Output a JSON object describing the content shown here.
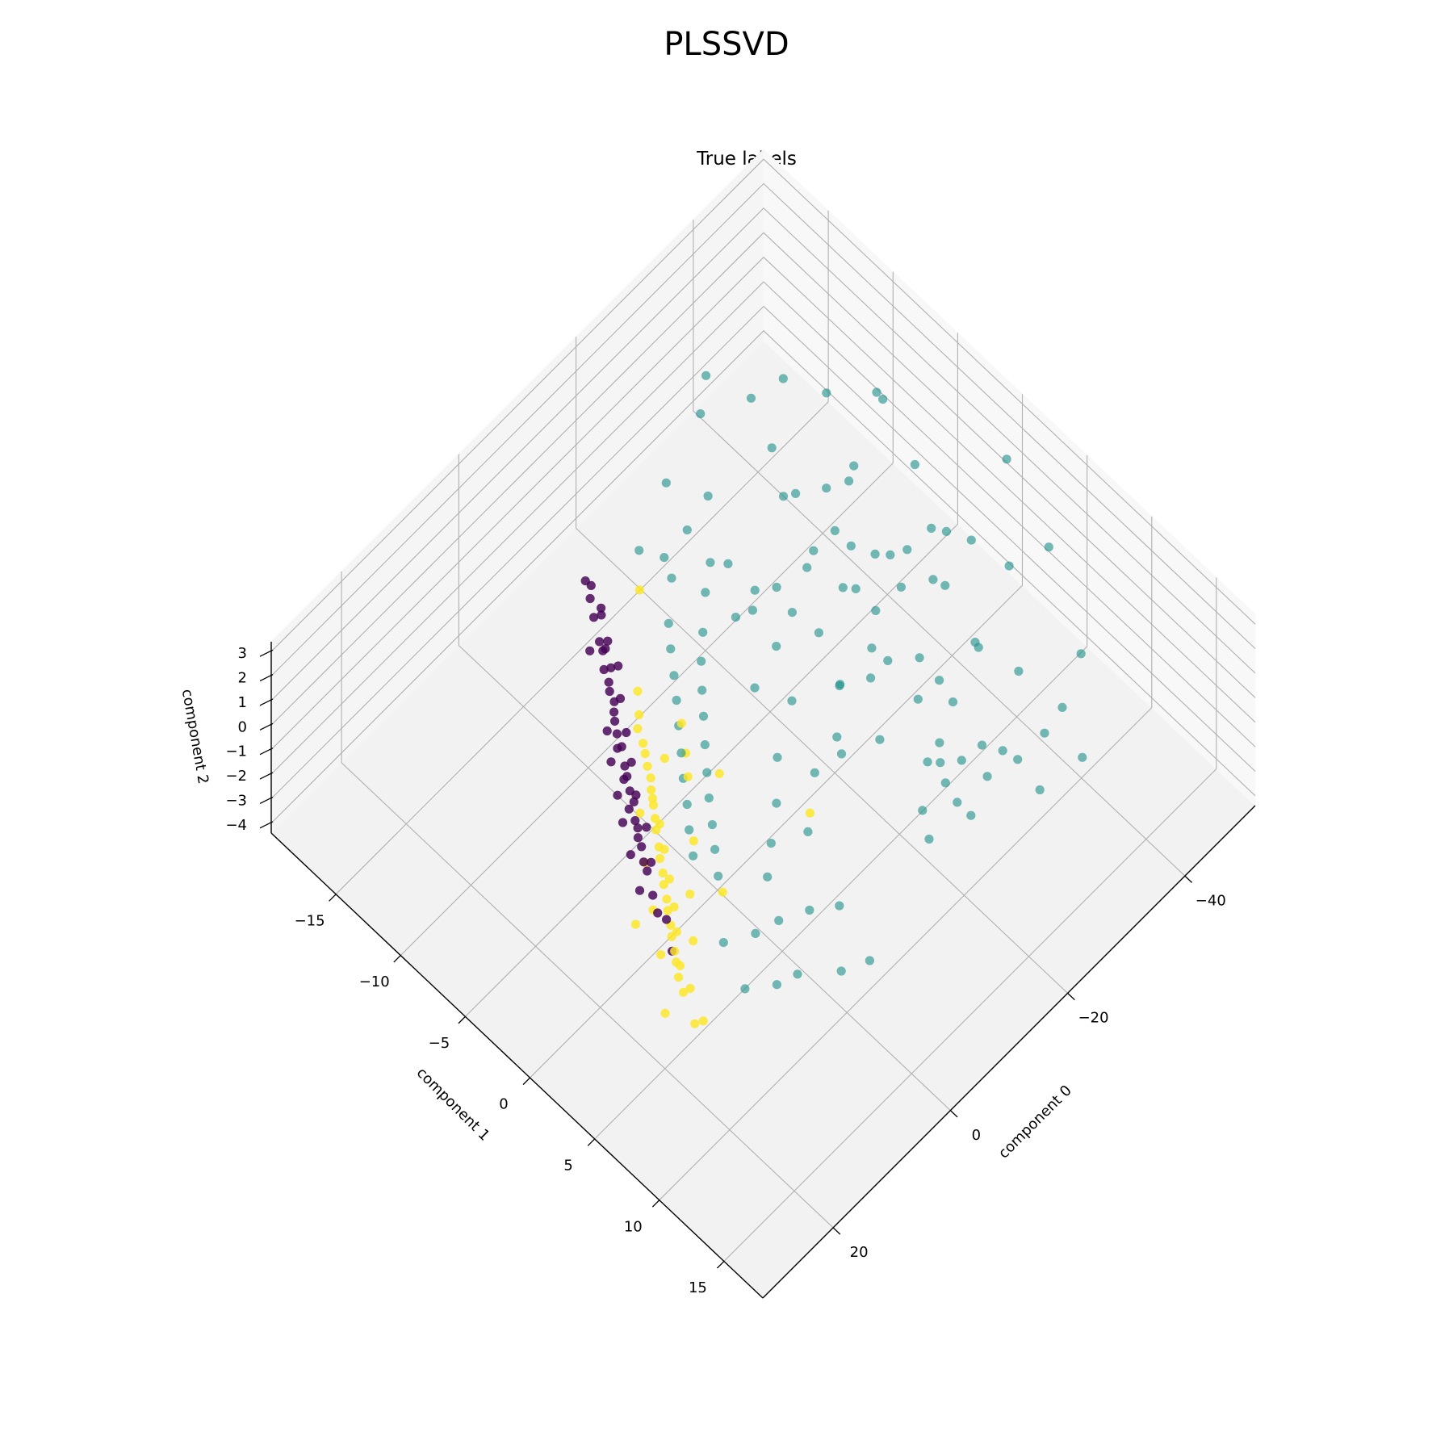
{
  "figure": {
    "suptitle": "PLSSVD",
    "axes_title": "True labels"
  },
  "chart_data": {
    "type": "scatter",
    "projection": "3d",
    "title": "PLSSVD",
    "subtitle": "True labels",
    "xlabel": "component 0",
    "ylabel": "component 1",
    "zlabel": "component 2",
    "xlim": [
      -52,
      32
    ],
    "ylim": [
      -20,
      18
    ],
    "zlim": [
      -4.4,
      3.4
    ],
    "x_ticks": [
      -40,
      -20,
      0,
      20
    ],
    "x_tick_labels": [
      "−40",
      "−20",
      "0",
      "20"
    ],
    "y_ticks": [
      -15,
      -10,
      -5,
      0,
      5,
      10,
      15
    ],
    "y_tick_labels": [
      "−15",
      "−10",
      "−5",
      "0",
      "5",
      "10",
      "15"
    ],
    "z_ticks": [
      -4,
      -3,
      -2,
      -1,
      0,
      1,
      2,
      3
    ],
    "z_tick_labels": [
      "−4",
      "−3",
      "−2",
      "−1",
      "0",
      "1",
      "2",
      "3"
    ],
    "grid": true,
    "legend": "none",
    "colormap": "viridis",
    "class_colors": [
      "#440154",
      "#21918c",
      "#fde725"
    ],
    "series": [
      {
        "class": 0,
        "color": "#440154",
        "points": [
          [
            -2.1,
            -10.8,
            1.6
          ],
          [
            -1.4,
            -10.2,
            1.3
          ],
          [
            -0.6,
            -9.4,
            0.9
          ],
          [
            0.4,
            -8.6,
            0.4
          ],
          [
            1.2,
            -7.8,
            0.1
          ],
          [
            2.3,
            -6.9,
            -0.4
          ],
          [
            3.1,
            -6.0,
            -0.8
          ],
          [
            4.2,
            -5.1,
            -1.3
          ],
          [
            5.0,
            -4.2,
            -1.7
          ],
          [
            6.1,
            -3.4,
            -2.1
          ],
          [
            -0.9,
            -8.9,
            1.1
          ],
          [
            0.1,
            -8.2,
            0.6
          ],
          [
            1.5,
            -7.3,
            0.0
          ],
          [
            2.8,
            -6.5,
            -0.6
          ],
          [
            3.9,
            -5.4,
            -1.1
          ],
          [
            4.8,
            -4.6,
            -1.5
          ],
          [
            5.9,
            -3.7,
            -2.0
          ],
          [
            6.8,
            -2.8,
            -2.4
          ],
          [
            7.6,
            -2.0,
            -2.8
          ],
          [
            8.4,
            -1.2,
            -3.2
          ],
          [
            -1.8,
            -9.8,
            1.5
          ],
          [
            -0.3,
            -9.0,
            0.8
          ],
          [
            0.9,
            -8.0,
            0.3
          ],
          [
            2.0,
            -7.1,
            -0.2
          ],
          [
            3.4,
            -6.2,
            -0.9
          ],
          [
            4.5,
            -5.2,
            -1.4
          ],
          [
            5.6,
            -4.3,
            -1.9
          ],
          [
            6.5,
            -3.2,
            -2.3
          ],
          [
            7.3,
            -2.4,
            -2.7
          ],
          [
            8.9,
            -0.6,
            -3.5
          ],
          [
            -2.4,
            -11.3,
            2.0
          ],
          [
            -1.6,
            -10.5,
            2.4
          ],
          [
            0.2,
            -7.6,
            1.0
          ],
          [
            1.8,
            -6.7,
            0.5
          ],
          [
            3.0,
            -5.7,
            -0.1
          ],
          [
            4.1,
            -4.8,
            -0.6
          ],
          [
            5.3,
            -3.9,
            -1.2
          ],
          [
            6.4,
            -2.6,
            -1.6
          ],
          [
            7.8,
            -1.6,
            -2.2
          ],
          [
            9.6,
            0.4,
            -3.1
          ],
          [
            -1.1,
            -9.5,
            2.1
          ],
          [
            0.6,
            -8.4,
            1.4
          ],
          [
            2.5,
            -7.4,
            -1.0
          ],
          [
            3.6,
            -6.6,
            -1.6
          ],
          [
            4.7,
            -5.6,
            -2.2
          ],
          [
            5.8,
            -4.7,
            -2.6
          ],
          [
            7.1,
            -3.5,
            -3.0
          ],
          [
            8.2,
            -2.3,
            -3.6
          ],
          [
            10.4,
            1.2,
            -3.8
          ],
          [
            -0.5,
            -10.1,
            0.2
          ]
        ]
      },
      {
        "class": 1,
        "color": "#21918c",
        "points": [
          [
            -28.0,
            -2.0,
            0.2
          ],
          [
            -30.5,
            -3.5,
            0.6
          ],
          [
            -25.2,
            0.5,
            -0.3
          ],
          [
            -32.1,
            -1.2,
            1.0
          ],
          [
            -27.4,
            -5.0,
            0.4
          ],
          [
            -22.8,
            -2.5,
            -0.6
          ],
          [
            -35.0,
            0.8,
            0.3
          ],
          [
            -29.6,
            2.2,
            -0.9
          ],
          [
            -24.3,
            -4.1,
            0.9
          ],
          [
            -31.8,
            -6.0,
            1.4
          ],
          [
            -26.7,
            3.4,
            -1.3
          ],
          [
            -20.9,
            0.0,
            -1.0
          ],
          [
            -33.5,
            -3.0,
            -0.2
          ],
          [
            -28.9,
            1.1,
            1.6
          ],
          [
            -23.6,
            -1.0,
            1.8
          ],
          [
            -37.2,
            -2.2,
            -0.5
          ],
          [
            -30.0,
            4.6,
            -1.6
          ],
          [
            -25.8,
            -6.6,
            2.2
          ],
          [
            -21.5,
            2.8,
            -2.0
          ],
          [
            -34.4,
            2.0,
            0.8
          ],
          [
            -27.0,
            -0.4,
            -2.4
          ],
          [
            -22.0,
            -5.4,
            0.0
          ],
          [
            -29.2,
            -7.2,
            1.2
          ],
          [
            -38.6,
            0.2,
            1.1
          ],
          [
            -24.8,
            5.0,
            -2.6
          ],
          [
            -31.2,
            3.0,
            -1.8
          ],
          [
            -19.8,
            -3.2,
            0.6
          ],
          [
            -26.2,
            -2.8,
            2.6
          ],
          [
            -33.0,
            -4.8,
            2.0
          ],
          [
            -36.0,
            3.6,
            -1.1
          ],
          [
            -28.4,
            6.0,
            -2.9
          ],
          [
            -23.0,
            1.8,
            2.4
          ],
          [
            -30.8,
            -0.8,
            -2.8
          ],
          [
            -40.0,
            -1.6,
            0.0
          ],
          [
            -21.0,
            -6.8,
            -1.4
          ],
          [
            -27.8,
            -8.4,
            2.8
          ],
          [
            -35.6,
            -5.6,
            1.6
          ],
          [
            -25.0,
            7.2,
            -3.2
          ],
          [
            -32.6,
            5.4,
            0.4
          ],
          [
            -18.6,
            0.8,
            -2.2
          ],
          [
            -6.0,
            -6.5,
            1.8
          ],
          [
            -4.8,
            -5.8,
            1.4
          ],
          [
            -3.6,
            -5.0,
            1.0
          ],
          [
            -2.5,
            -4.3,
            0.6
          ],
          [
            -1.3,
            -3.6,
            0.2
          ],
          [
            -0.2,
            -2.9,
            -0.3
          ],
          [
            1.0,
            -2.2,
            -0.7
          ],
          [
            2.1,
            -1.4,
            -1.1
          ],
          [
            3.3,
            -0.7,
            -1.5
          ],
          [
            4.4,
            0.1,
            -1.9
          ],
          [
            -7.2,
            -4.4,
            2.2
          ],
          [
            -5.6,
            -3.8,
            1.7
          ],
          [
            -4.2,
            -3.1,
            1.2
          ],
          [
            -2.9,
            -2.4,
            0.8
          ],
          [
            -1.6,
            -1.7,
            0.3
          ],
          [
            -0.4,
            -1.0,
            -0.2
          ],
          [
            0.8,
            -0.3,
            -0.6
          ],
          [
            2.0,
            0.5,
            -1.0
          ],
          [
            3.1,
            1.2,
            -1.4
          ],
          [
            4.3,
            2.0,
            -1.8
          ],
          [
            -8.5,
            -7.4,
            2.6
          ],
          [
            -9.4,
            -5.2,
            2.9
          ],
          [
            -10.6,
            -3.4,
            2.5
          ],
          [
            -12.0,
            -6.0,
            3.1
          ],
          [
            -13.8,
            -8.6,
            2.7
          ],
          [
            -15.2,
            -4.0,
            2.2
          ],
          [
            -11.2,
            -9.2,
            1.9
          ],
          [
            -16.8,
            -6.8,
            1.5
          ],
          [
            -7.8,
            -9.6,
            2.8
          ],
          [
            -9.0,
            -1.2,
            1.1
          ],
          [
            -11.8,
            0.4,
            0.7
          ],
          [
            -14.0,
            -1.8,
            1.3
          ],
          [
            -17.5,
            1.5,
            0.5
          ],
          [
            -8.0,
            1.0,
            -0.4
          ],
          [
            -5.2,
            2.2,
            -1.0
          ],
          [
            -10.4,
            2.8,
            -0.7
          ],
          [
            -13.2,
            3.6,
            -0.2
          ],
          [
            -6.6,
            4.0,
            -1.6
          ],
          [
            -3.4,
            2.6,
            -2.0
          ],
          [
            -1.0,
            3.4,
            -2.4
          ],
          [
            -44.0,
            2.6,
            -0.4
          ],
          [
            -42.5,
            -4.0,
            0.8
          ],
          [
            -45.5,
            -1.0,
            -1.5
          ],
          [
            -39.0,
            5.6,
            -2.0
          ],
          [
            -41.6,
            7.8,
            -3.0
          ],
          [
            -36.8,
            8.6,
            -2.5
          ],
          [
            -46.8,
            4.4,
            0.6
          ],
          [
            -43.2,
            -6.8,
            1.9
          ],
          [
            -33.8,
            9.6,
            -3.6
          ],
          [
            -48.0,
            0.6,
            2.0
          ],
          [
            -18.0,
            9.0,
            1.8
          ],
          [
            -14.6,
            10.6,
            2.6
          ],
          [
            -12.4,
            12.0,
            3.0
          ],
          [
            -9.8,
            11.4,
            2.2
          ],
          [
            -20.4,
            12.8,
            2.8
          ],
          [
            -16.0,
            13.6,
            3.2
          ],
          [
            -22.6,
            10.2,
            1.2
          ],
          [
            -7.4,
            13.0,
            2.4
          ],
          [
            -25.6,
            11.6,
            0.6
          ],
          [
            -11.0,
            14.6,
            3.3
          ],
          [
            -2.0,
            6.2,
            -2.6
          ],
          [
            0.6,
            5.0,
            -3.0
          ],
          [
            2.8,
            4.2,
            -3.4
          ],
          [
            -4.0,
            7.6,
            -2.2
          ],
          [
            5.6,
            3.0,
            -3.7
          ],
          [
            1.8,
            7.0,
            -3.9
          ],
          [
            -0.8,
            9.2,
            -3.3
          ],
          [
            4.0,
            6.4,
            -4.1
          ],
          [
            -3.0,
            10.4,
            -2.8
          ],
          [
            6.8,
            5.2,
            -4.2
          ],
          [
            -38.0,
            -8.8,
            2.4
          ],
          [
            -30.0,
            -11.0,
            3.0
          ],
          [
            -24.0,
            -12.2,
            3.2
          ],
          [
            -20.0,
            -9.8,
            2.0
          ],
          [
            -34.6,
            -10.6,
            2.9
          ],
          [
            -16.4,
            -11.4,
            2.6
          ],
          [
            -44.8,
            -8.0,
            1.2
          ],
          [
            -27.6,
            -13.4,
            3.3
          ],
          [
            -40.6,
            9.8,
            -3.8
          ],
          [
            -47.0,
            6.8,
            -2.6
          ]
        ]
      },
      {
        "class": 2,
        "color": "#fde725",
        "points": [
          [
            3.0,
            -3.8,
            -1.0
          ],
          [
            4.1,
            -3.1,
            -1.5
          ],
          [
            5.2,
            -2.4,
            -1.9
          ],
          [
            6.3,
            -1.6,
            -2.4
          ],
          [
            7.4,
            -0.8,
            -2.8
          ],
          [
            8.5,
            0.0,
            -3.2
          ],
          [
            9.6,
            0.8,
            -3.6
          ],
          [
            10.6,
            1.6,
            -4.0
          ],
          [
            2.2,
            -4.6,
            -0.6
          ],
          [
            3.6,
            -3.5,
            -1.2
          ],
          [
            4.7,
            -2.7,
            -1.7
          ],
          [
            5.8,
            -1.9,
            -2.2
          ],
          [
            6.9,
            -1.1,
            -2.6
          ],
          [
            8.0,
            -0.3,
            -3.0
          ],
          [
            9.1,
            0.5,
            -3.4
          ],
          [
            10.2,
            1.3,
            -3.8
          ],
          [
            11.3,
            2.1,
            -4.2
          ],
          [
            1.5,
            -5.5,
            -0.2
          ],
          [
            2.7,
            -4.2,
            -0.8
          ],
          [
            3.8,
            -3.3,
            -1.4
          ],
          [
            5.0,
            -2.2,
            -1.6
          ],
          [
            6.0,
            -1.4,
            -2.0
          ],
          [
            7.1,
            -0.5,
            -2.5
          ],
          [
            8.3,
            0.4,
            -2.9
          ],
          [
            9.4,
            1.1,
            -3.3
          ],
          [
            10.8,
            2.0,
            -3.9
          ],
          [
            12.0,
            2.8,
            -4.3
          ],
          [
            -0.5,
            -6.4,
            0.4
          ],
          [
            0.6,
            -5.8,
            0.0
          ],
          [
            1.9,
            -4.9,
            -0.4
          ],
          [
            4.4,
            -4.0,
            -2.2
          ],
          [
            6.6,
            -2.6,
            -3.0
          ],
          [
            8.8,
            -1.0,
            -3.6
          ],
          [
            11.0,
            0.6,
            -4.1
          ],
          [
            7.8,
            1.4,
            -2.0
          ],
          [
            9.9,
            2.6,
            -2.8
          ],
          [
            12.6,
            3.6,
            -3.6
          ],
          [
            -2.0,
            -5.0,
            -2.0
          ],
          [
            -6.5,
            -2.8,
            -2.6
          ],
          [
            -14.0,
            0.8,
            -4.2
          ],
          [
            -4.8,
            -8.2,
            2.6
          ],
          [
            5.4,
            0.6,
            -0.8
          ],
          [
            2.4,
            -1.2,
            0.2
          ],
          [
            13.6,
            4.4,
            -4.4
          ],
          [
            16.0,
            3.2,
            -4.0
          ],
          [
            6.2,
            3.2,
            -1.4
          ],
          [
            -1.2,
            -3.0,
            -0.6
          ],
          [
            10.0,
            -1.8,
            -4.3
          ],
          [
            14.8,
            5.6,
            -3.4
          ],
          [
            0.4,
            -2.6,
            1.2
          ]
        ]
      }
    ]
  }
}
